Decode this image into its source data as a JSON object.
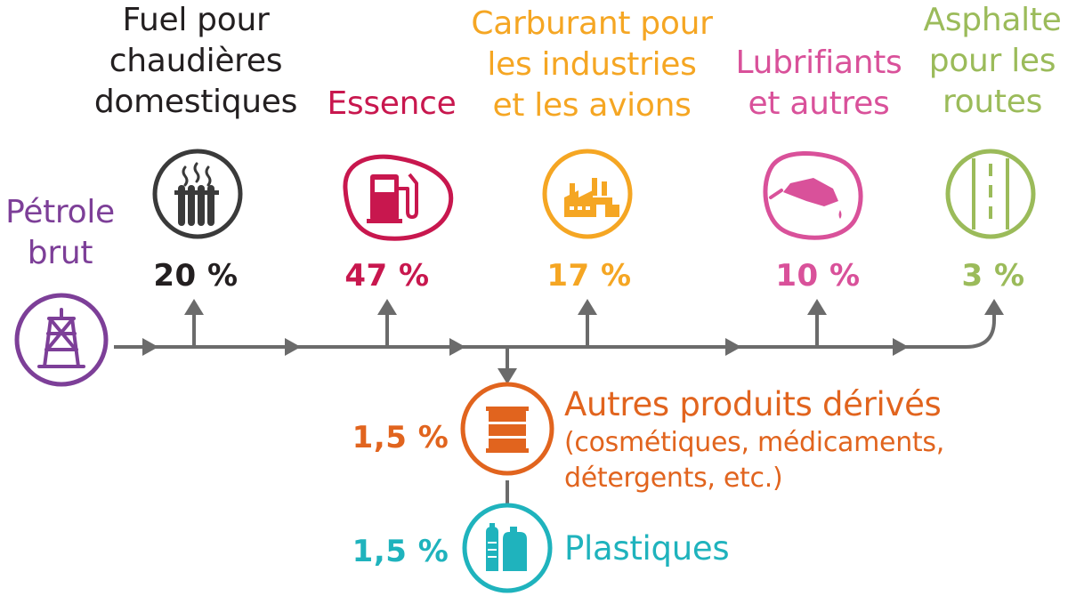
{
  "colors": {
    "line": "#6b6b6b",
    "black": "#231f20",
    "purple": "#7d3f98",
    "crimson": "#c8174e",
    "amber": "#f5a623",
    "pink": "#d9519a",
    "green": "#9bbb5a",
    "orange": "#e1641e",
    "teal": "#1fb3bd"
  },
  "source": {
    "label": "Pétrole\nbrut",
    "icon": "oil-derrick-icon"
  },
  "products": [
    {
      "label": "Fuel pour\nchaudières\ndomestiques",
      "percent": "20 %",
      "icon": "radiator-icon"
    },
    {
      "label": "Essence",
      "percent": "47 %",
      "icon": "fuel-pump-icon"
    },
    {
      "label": "Carburant pour\nles industries\net les avions",
      "percent": "17 %",
      "icon": "factory-icon"
    },
    {
      "label": "Lubrifiants\net autres",
      "percent": "10 %",
      "icon": "oil-can-icon"
    },
    {
      "label": "Asphalte\npour les\nroutes",
      "percent": "3 %",
      "icon": "road-icon"
    }
  ],
  "derived": [
    {
      "title": "Autres produits dérivés",
      "subtitle": "(cosmétiques, médicaments,\ndétergents, etc.)",
      "percent": "1,5 %",
      "icon": "barrel-icon"
    },
    {
      "title": "Plastiques",
      "subtitle": "",
      "percent": "1,5 %",
      "icon": "plastic-bottles-icon"
    }
  ]
}
